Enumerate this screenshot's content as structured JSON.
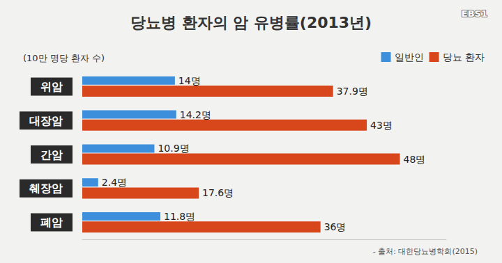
{
  "chart_data": {
    "type": "bar",
    "title": "당뇨병 환자의 암 유병률(2013년)",
    "subtitle": "(10만 명당 환자 수)",
    "annotations": [
      "- 출처: 대한당뇨병학회(2015)",
      "EBS1"
    ],
    "categories": [
      "위암",
      "대장암",
      "간암",
      "췌장암",
      "폐암"
    ],
    "series": [
      {
        "name": "일반인",
        "color": "#3d8fdc",
        "values": [
          14,
          14.2,
          10.9,
          2.4,
          11.8
        ],
        "value_labels": [
          "14명",
          "14.2명",
          "10.9명",
          "2.4명",
          "11.8명"
        ]
      },
      {
        "name": "당뇨 환자",
        "color": "#d8461c",
        "values": [
          37.9,
          43,
          48,
          17.6,
          36
        ],
        "value_labels": [
          "37.9명",
          "43명",
          "48명",
          "17.6명",
          "36명"
        ]
      }
    ],
    "orientation": "horizontal",
    "xlim": [
      0,
      55
    ],
    "data_labels": true,
    "tick_labels": "y",
    "grid": false,
    "legend": "top-right"
  }
}
